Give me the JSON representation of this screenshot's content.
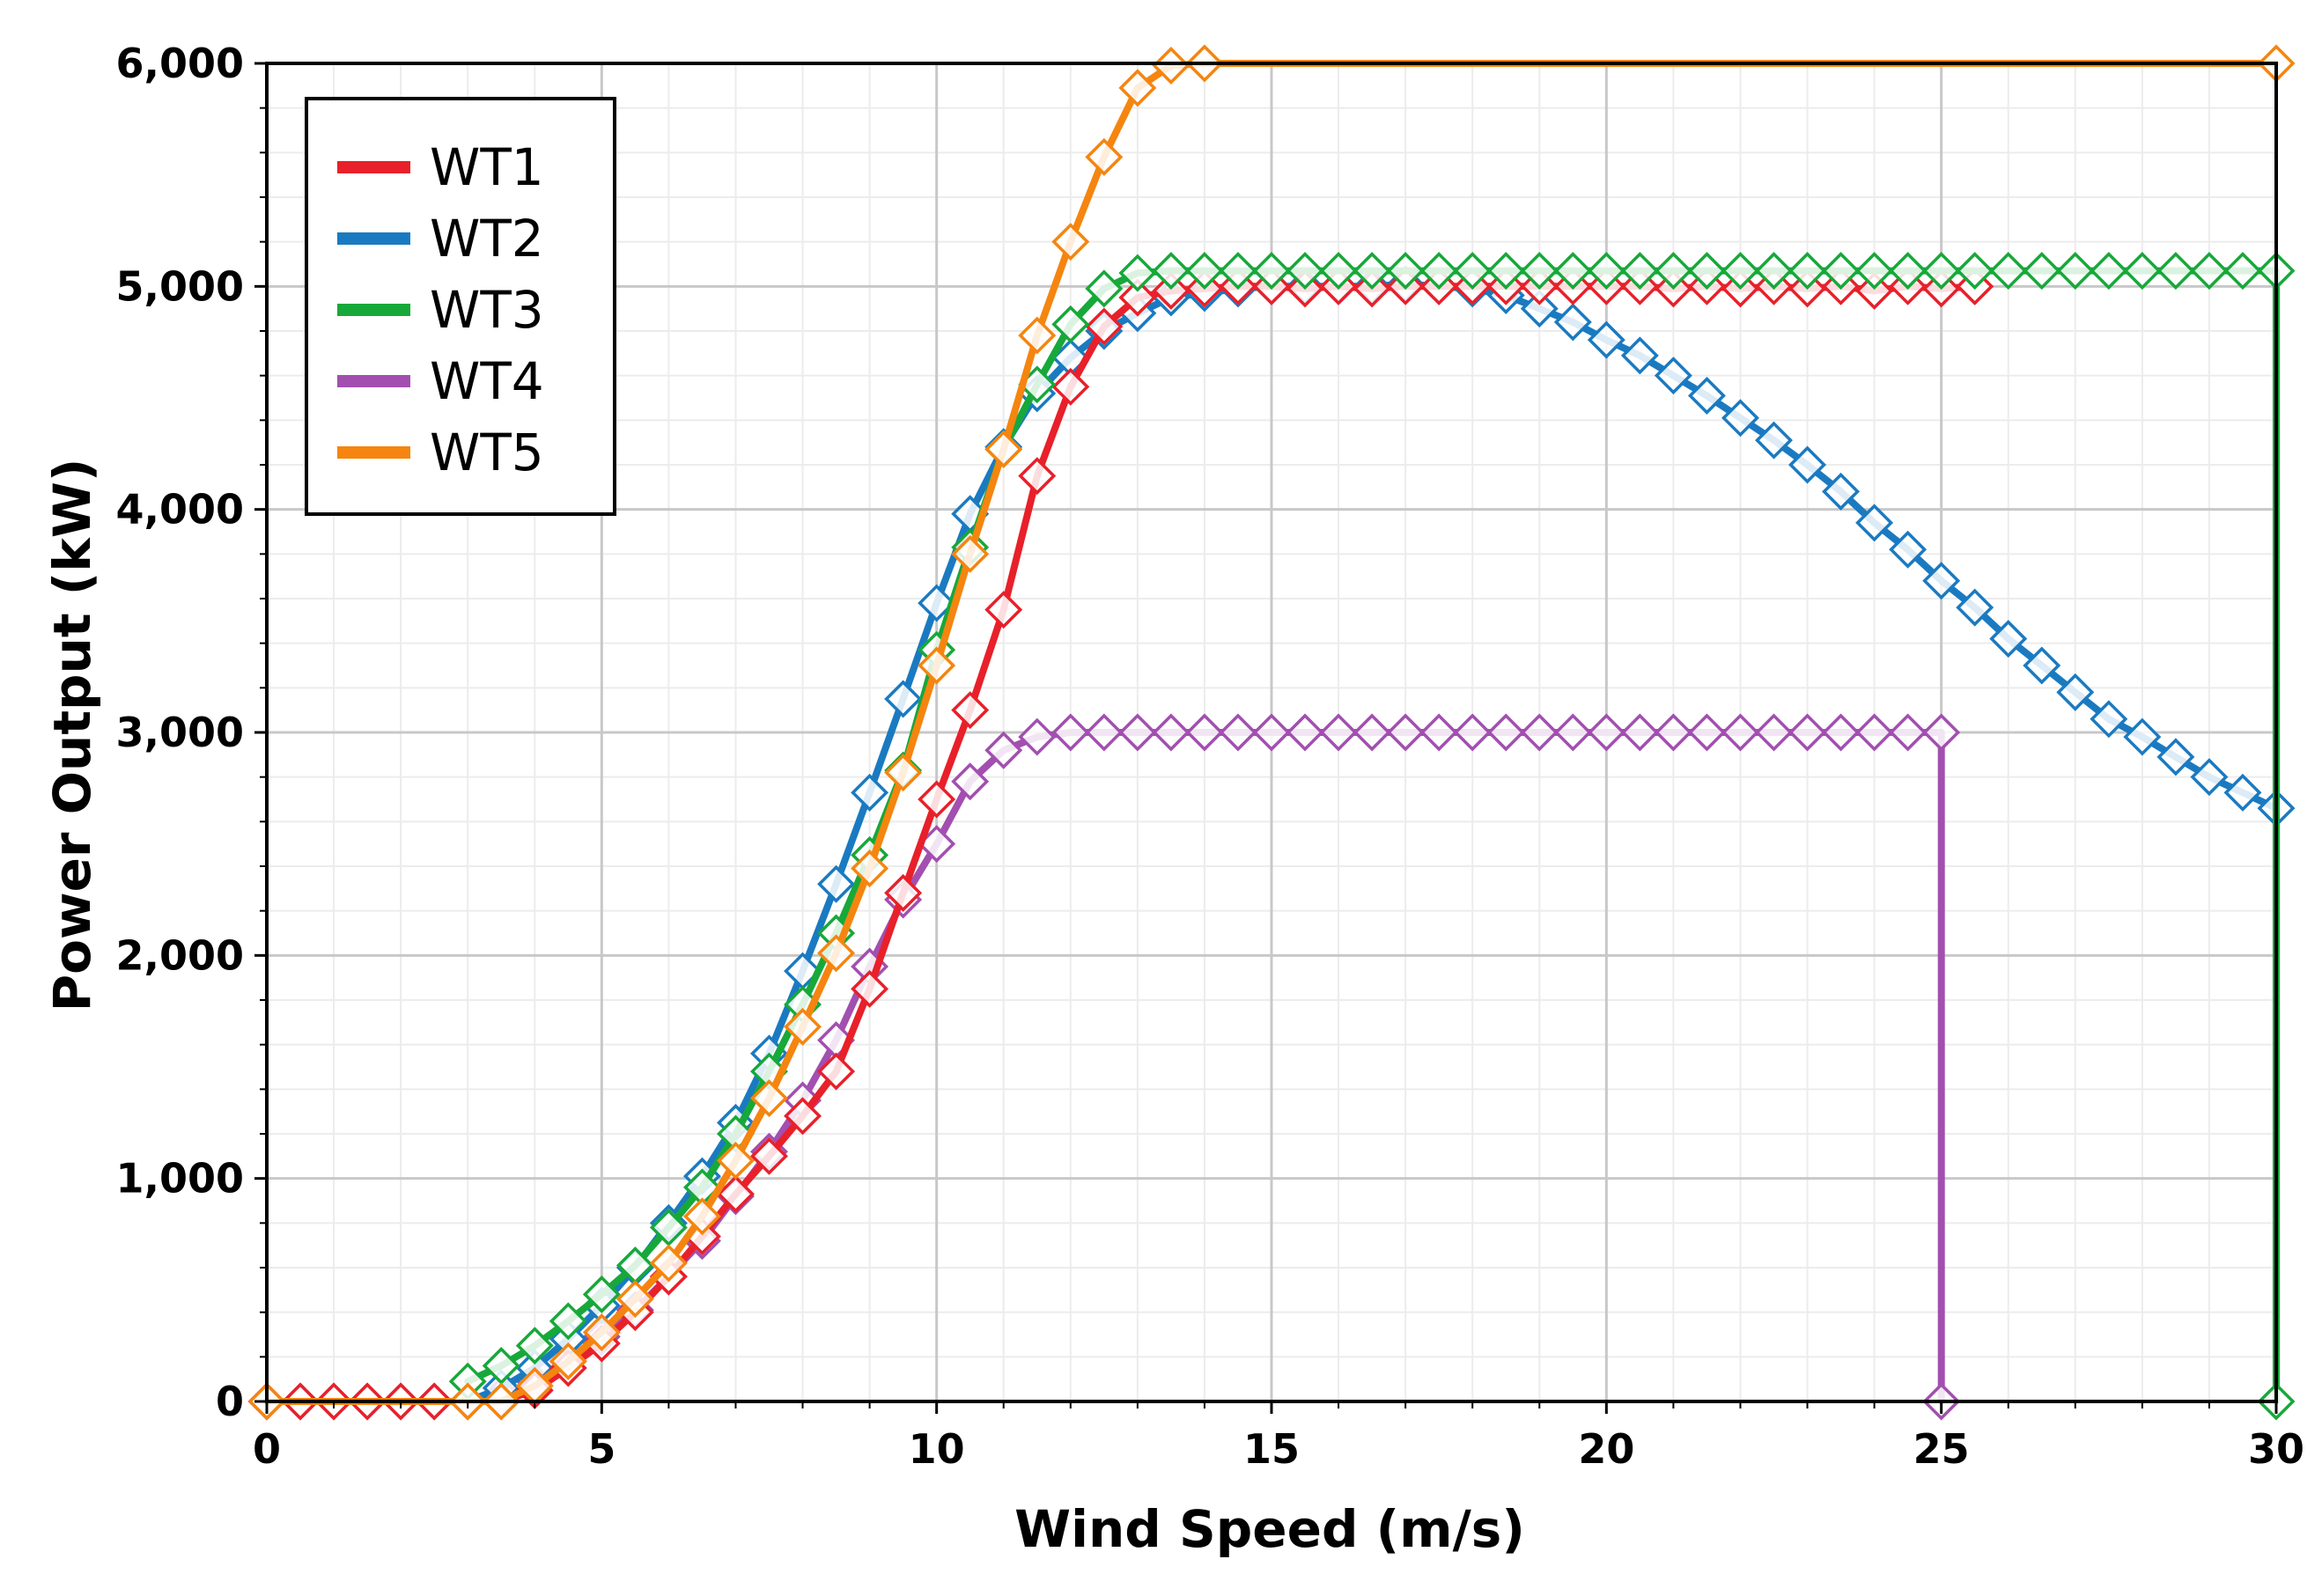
{
  "chart_data": {
    "type": "line",
    "title": "",
    "xlabel": "Wind Speed (m/s)",
    "ylabel": "Power Output (kW)",
    "xlim": [
      0,
      30
    ],
    "ylim": [
      0,
      6000
    ],
    "xticks": [
      0,
      5,
      10,
      15,
      20,
      25,
      30
    ],
    "xtick_labels": [
      "0",
      "5",
      "10",
      "15",
      "20",
      "25",
      "30"
    ],
    "yticks": [
      0,
      1000,
      2000,
      3000,
      4000,
      5000,
      6000
    ],
    "ytick_labels": [
      "0",
      "1,000",
      "2,000",
      "3,000",
      "4,000",
      "5,000",
      "6,000"
    ],
    "grid": true,
    "legend_position": "top-left",
    "marker": "diamond",
    "series": [
      {
        "name": "WT1",
        "color": "#e8202a",
        "x": [
          0,
          0.5,
          1,
          1.5,
          2,
          2.5,
          3,
          3.5,
          4,
          4.5,
          5,
          5.5,
          6,
          6.5,
          7,
          7.5,
          8,
          8.5,
          9,
          9.5,
          10,
          10.5,
          11,
          11.5,
          12,
          12.5,
          13,
          13.5,
          14,
          14.5,
          15,
          15.5,
          16,
          16.5,
          17,
          17.5,
          18,
          18.5,
          19,
          19.5,
          20,
          20.5,
          21,
          21.5,
          22,
          22.5,
          23,
          23.5,
          24,
          24.5,
          25,
          25.5,
          25.5
        ],
        "values": [
          0,
          0,
          0,
          0,
          0,
          0,
          0,
          0,
          50,
          150,
          260,
          400,
          560,
          740,
          930,
          1100,
          1280,
          1480,
          1850,
          2280,
          2700,
          3100,
          3550,
          4150,
          4550,
          4820,
          4950,
          4980,
          4990,
          5000,
          5000,
          4990,
          5000,
          4990,
          5000,
          5000,
          5000,
          5000,
          5000,
          5000,
          5000,
          5000,
          4990,
          5000,
          4990,
          5000,
          4990,
          5000,
          4980,
          5000,
          4990,
          5000,
          5000
        ]
      },
      {
        "name": "WT2",
        "color": "#1a7ac1",
        "x": [
          3,
          3.5,
          4,
          4.5,
          5,
          5.5,
          6,
          6.5,
          7,
          7.5,
          8,
          8.5,
          9,
          9.5,
          10,
          10.5,
          11,
          11.5,
          12,
          12.5,
          13,
          13.5,
          14,
          14.5,
          15,
          15.5,
          16,
          16.5,
          17,
          17.5,
          18,
          18.5,
          19,
          19.5,
          20,
          20.5,
          21,
          21.5,
          22,
          22.5,
          23,
          23.5,
          24,
          24.5,
          25,
          25.5,
          26,
          26.5,
          27,
          27.5,
          28,
          28.5,
          29,
          29.5,
          30
        ],
        "values": [
          0,
          60,
          150,
          280,
          430,
          600,
          800,
          1010,
          1250,
          1560,
          1930,
          2320,
          2730,
          3150,
          3580,
          3980,
          4280,
          4520,
          4680,
          4800,
          4880,
          4950,
          4970,
          4990,
          5000,
          5000,
          5000,
          5000,
          5010,
          5000,
          4990,
          4960,
          4900,
          4840,
          4760,
          4690,
          4600,
          4510,
          4410,
          4310,
          4200,
          4080,
          3940,
          3820,
          3680,
          3560,
          3420,
          3300,
          3180,
          3060,
          2980,
          2890,
          2800,
          2730,
          2660
        ]
      },
      {
        "name": "WT3",
        "color": "#17a83a",
        "x": [
          3,
          3.5,
          4,
          4.5,
          5,
          5.5,
          6,
          6.5,
          7,
          7.5,
          8,
          8.5,
          9,
          9.5,
          10,
          10.5,
          11,
          11.5,
          12,
          12.5,
          13,
          13.5,
          14,
          14.5,
          15,
          15.5,
          16,
          16.5,
          17,
          17.5,
          18,
          18.5,
          19,
          19.5,
          20,
          20.5,
          21,
          21.5,
          22,
          22.5,
          23,
          23.5,
          24,
          24.5,
          25,
          25.5,
          26,
          26.5,
          27,
          27.5,
          28,
          28.5,
          29,
          29.5,
          30,
          30
        ],
        "values": [
          90,
          160,
          250,
          360,
          480,
          610,
          780,
          960,
          1200,
          1480,
          1780,
          2100,
          2450,
          2830,
          3370,
          3830,
          4270,
          4560,
          4830,
          4990,
          5060,
          5070,
          5070,
          5070,
          5070,
          5070,
          5070,
          5070,
          5070,
          5070,
          5070,
          5070,
          5070,
          5070,
          5070,
          5070,
          5070,
          5070,
          5070,
          5070,
          5070,
          5070,
          5070,
          5070,
          5070,
          5070,
          5070,
          5070,
          5070,
          5070,
          5070,
          5070,
          5070,
          5070,
          5070,
          0
        ]
      },
      {
        "name": "WT4",
        "color": "#a24fb0",
        "x": [
          0,
          0.5,
          1,
          1.5,
          2,
          2.5,
          3,
          3.5,
          4,
          4.5,
          5,
          5.5,
          6,
          6.5,
          7,
          7.5,
          8,
          8.5,
          9,
          9.5,
          10,
          10.5,
          11,
          11.5,
          12,
          12.5,
          13,
          13.5,
          14,
          14.5,
          15,
          15.5,
          16,
          16.5,
          17,
          17.5,
          18,
          18.5,
          19,
          19.5,
          20,
          20.5,
          21,
          21.5,
          22,
          22.5,
          23,
          23.5,
          24,
          24.5,
          25,
          25
        ],
        "values": [
          0,
          0,
          0,
          0,
          0,
          0,
          0,
          30,
          90,
          180,
          290,
          410,
          560,
          720,
          920,
          1120,
          1350,
          1620,
          1950,
          2250,
          2500,
          2780,
          2920,
          2980,
          3000,
          3000,
          3000,
          3000,
          3000,
          3000,
          3000,
          3000,
          3000,
          3000,
          3000,
          3000,
          3000,
          3000,
          3000,
          3000,
          3000,
          3000,
          3000,
          3000,
          3000,
          3000,
          3000,
          3000,
          3000,
          3000,
          3000,
          0
        ]
      },
      {
        "name": "WT5",
        "color": "#f5850f",
        "x": [
          0,
          3,
          3.5,
          4,
          4.5,
          5,
          5.5,
          6,
          6.5,
          7,
          7.5,
          8,
          8.5,
          9,
          9.5,
          10,
          10.5,
          11,
          11.5,
          12,
          12.5,
          13,
          13.5,
          14,
          30
        ],
        "values": [
          0,
          0,
          0,
          70,
          180,
          310,
          460,
          620,
          830,
          1080,
          1360,
          1680,
          2010,
          2390,
          2820,
          3300,
          3800,
          4270,
          4780,
          5200,
          5580,
          5890,
          5990,
          6000,
          6000
        ]
      }
    ]
  },
  "legend": {
    "items": [
      "WT1",
      "WT2",
      "WT3",
      "WT4",
      "WT5"
    ]
  }
}
